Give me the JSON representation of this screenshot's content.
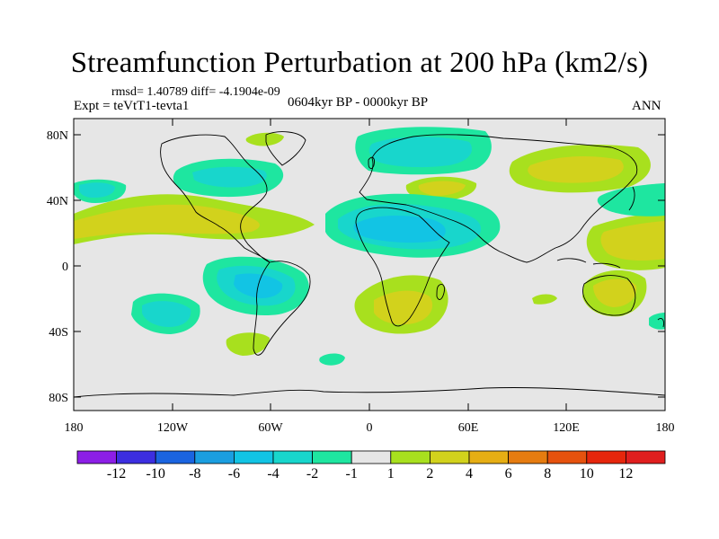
{
  "header": {
    "title": "Streamfunction Perturbation at 200 hPa (km2/s)",
    "stats": "rmsd= 1.40789 diff= -4.1904e-09",
    "experiment": "Expt = teVtT1-tevta1",
    "period": "0604kyr BP - 0000kyr BP",
    "season": "ANN"
  },
  "axes": {
    "lat_ticks": [
      "80N",
      "40N",
      "0",
      "40S",
      "80S"
    ],
    "lon_ticks": [
      "180",
      "120W",
      "60W",
      "0",
      "60E",
      "120E",
      "180"
    ]
  },
  "colorbar": {
    "labels": [
      "-12",
      "-10",
      "-8",
      "-6",
      "-4",
      "-2",
      "-1",
      "1",
      "2",
      "4",
      "6",
      "8",
      "10",
      "12"
    ],
    "colors": [
      "#8c1ee6",
      "#3c2ee0",
      "#1a64e0",
      "#1a9ee0",
      "#12c4e4",
      "#18d6cc",
      "#1ee6a0",
      "#e6e6e6",
      "#a8e01e",
      "#d2d21c",
      "#e6ae14",
      "#e67c10",
      "#e6520e",
      "#e6260c",
      "#e01e1e"
    ]
  },
  "colors": {
    "neg1": "#1ee6a0",
    "neg2": "#18d6cc",
    "neg4": "#12c4e4",
    "pos1": "#a8e01e",
    "pos2": "#d2d21c",
    "pos4": "#e6ae14",
    "pos6": "#e67c10",
    "ocean": "#e6e6e6"
  }
}
